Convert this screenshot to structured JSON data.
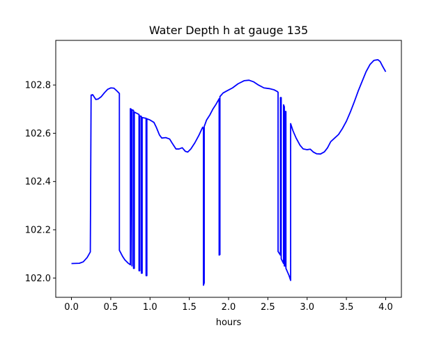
{
  "chart_data": {
    "type": "line",
    "title": "Water Depth h at gauge 135",
    "xlabel": "hours",
    "ylabel": "",
    "xlim": [
      -0.2,
      4.2
    ],
    "ylim": [
      101.92,
      102.985
    ],
    "x_ticks": [
      0.0,
      0.5,
      1.0,
      1.5,
      2.0,
      2.5,
      3.0,
      3.5,
      4.0
    ],
    "x_tick_labels": [
      "0.0",
      "0.5",
      "1.0",
      "1.5",
      "2.0",
      "2.5",
      "3.0",
      "3.5",
      "4.0"
    ],
    "y_ticks": [
      102.0,
      102.2,
      102.4,
      102.6,
      102.8
    ],
    "y_tick_labels": [
      "102.0",
      "102.2",
      "102.4",
      "102.6",
      "102.8"
    ],
    "grid": false,
    "legend": "none",
    "series": [
      {
        "color": "#0000ff",
        "points": [
          [
            0.0,
            102.06
          ],
          [
            0.1,
            102.061
          ],
          [
            0.15,
            102.067
          ],
          [
            0.2,
            102.085
          ],
          [
            0.24,
            102.108
          ],
          [
            0.25,
            102.758
          ],
          [
            0.27,
            102.76
          ],
          [
            0.29,
            102.75
          ],
          [
            0.31,
            102.74
          ],
          [
            0.34,
            102.742
          ],
          [
            0.38,
            102.752
          ],
          [
            0.42,
            102.768
          ],
          [
            0.46,
            102.782
          ],
          [
            0.5,
            102.788
          ],
          [
            0.54,
            102.787
          ],
          [
            0.58,
            102.775
          ],
          [
            0.61,
            102.765
          ],
          [
            0.61,
            102.115
          ],
          [
            0.65,
            102.09
          ],
          [
            0.68,
            102.075
          ],
          [
            0.72,
            102.062
          ],
          [
            0.75,
            102.055
          ],
          [
            0.75,
            102.702
          ],
          [
            0.76,
            102.7
          ],
          [
            0.77,
            102.05
          ],
          [
            0.77,
            102.697
          ],
          [
            0.79,
            102.695
          ],
          [
            0.79,
            102.04
          ],
          [
            0.8,
            102.04
          ],
          [
            0.8,
            102.688
          ],
          [
            0.86,
            102.678
          ],
          [
            0.86,
            102.03
          ],
          [
            0.87,
            102.03
          ],
          [
            0.87,
            102.672
          ],
          [
            0.89,
            102.67
          ],
          [
            0.89,
            102.02
          ],
          [
            0.9,
            102.02
          ],
          [
            0.9,
            102.665
          ],
          [
            0.95,
            102.662
          ],
          [
            0.95,
            102.01
          ],
          [
            0.96,
            102.01
          ],
          [
            0.96,
            102.66
          ],
          [
            1.0,
            102.655
          ],
          [
            1.05,
            102.645
          ],
          [
            1.08,
            102.625
          ],
          [
            1.12,
            102.593
          ],
          [
            1.15,
            102.58
          ],
          [
            1.2,
            102.582
          ],
          [
            1.25,
            102.576
          ],
          [
            1.28,
            102.56
          ],
          [
            1.33,
            102.535
          ],
          [
            1.37,
            102.535
          ],
          [
            1.41,
            102.54
          ],
          [
            1.45,
            102.525
          ],
          [
            1.48,
            102.522
          ],
          [
            1.52,
            102.535
          ],
          [
            1.57,
            102.56
          ],
          [
            1.62,
            102.59
          ],
          [
            1.67,
            102.625
          ],
          [
            1.68,
            102.62
          ],
          [
            1.68,
            101.97
          ],
          [
            1.69,
            101.98
          ],
          [
            1.69,
            102.628
          ],
          [
            1.72,
            102.655
          ],
          [
            1.76,
            102.675
          ],
          [
            1.8,
            102.7
          ],
          [
            1.84,
            102.72
          ],
          [
            1.88,
            102.743
          ],
          [
            1.88,
            102.095
          ],
          [
            1.89,
            102.097
          ],
          [
            1.89,
            102.752
          ],
          [
            1.93,
            102.767
          ],
          [
            1.98,
            102.776
          ],
          [
            2.05,
            102.788
          ],
          [
            2.12,
            102.805
          ],
          [
            2.2,
            102.818
          ],
          [
            2.26,
            102.82
          ],
          [
            2.32,
            102.813
          ],
          [
            2.38,
            102.8
          ],
          [
            2.45,
            102.788
          ],
          [
            2.52,
            102.785
          ],
          [
            2.58,
            102.78
          ],
          [
            2.62,
            102.773
          ],
          [
            2.63,
            102.77
          ],
          [
            2.63,
            102.11
          ],
          [
            2.66,
            102.095
          ],
          [
            2.66,
            102.748
          ],
          [
            2.67,
            102.748
          ],
          [
            2.67,
            102.08
          ],
          [
            2.7,
            102.06
          ],
          [
            2.7,
            102.718
          ],
          [
            2.71,
            102.71
          ],
          [
            2.71,
            102.05
          ],
          [
            2.72,
            102.05
          ],
          [
            2.72,
            102.69
          ],
          [
            2.73,
            102.69
          ],
          [
            2.73,
            102.04
          ],
          [
            2.77,
            102.01
          ],
          [
            2.79,
            101.99
          ],
          [
            2.79,
            102.64
          ],
          [
            2.82,
            102.61
          ],
          [
            2.86,
            102.58
          ],
          [
            2.91,
            102.55
          ],
          [
            2.95,
            102.535
          ],
          [
            3.0,
            102.532
          ],
          [
            3.04,
            102.534
          ],
          [
            3.08,
            102.522
          ],
          [
            3.12,
            102.515
          ],
          [
            3.17,
            102.514
          ],
          [
            3.22,
            102.523
          ],
          [
            3.26,
            102.54
          ],
          [
            3.3,
            102.565
          ],
          [
            3.35,
            102.58
          ],
          [
            3.4,
            102.595
          ],
          [
            3.45,
            102.62
          ],
          [
            3.5,
            102.65
          ],
          [
            3.55,
            102.688
          ],
          [
            3.6,
            102.73
          ],
          [
            3.65,
            102.775
          ],
          [
            3.7,
            102.815
          ],
          [
            3.75,
            102.855
          ],
          [
            3.8,
            102.885
          ],
          [
            3.85,
            102.902
          ],
          [
            3.9,
            102.905
          ],
          [
            3.93,
            102.897
          ],
          [
            3.96,
            102.878
          ],
          [
            4.0,
            102.855
          ]
        ]
      }
    ]
  }
}
